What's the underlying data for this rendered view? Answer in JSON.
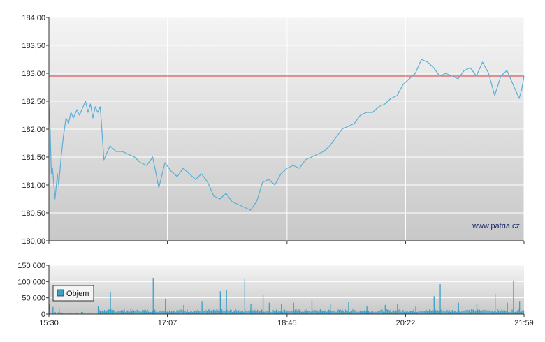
{
  "watermark": "www.patria.cz",
  "colors": {
    "price_line": "#5aaed6",
    "reference_line": "#d23a3a",
    "volume_bar": "#3aa0c8",
    "plot_bg_top": "#f4f4f4",
    "plot_bg_bottom": "#c8c8c8",
    "grid": "#ffffff"
  },
  "chart_data": [
    {
      "type": "line",
      "panel": "price",
      "ylim": [
        180.0,
        184.0
      ],
      "y_ticks": [
        "184,00",
        "183,50",
        "183,00",
        "182,50",
        "182,00",
        "181,50",
        "181,00",
        "180,50",
        "180,00"
      ],
      "x_ticks": [
        "15:30",
        "17:07",
        "18:45",
        "20:22",
        "21:59"
      ],
      "xlim": [
        "15:30",
        "21:59"
      ],
      "reference_line": 182.95,
      "grid": true,
      "series": [
        {
          "x": [
            "15:30",
            "15:31",
            "15:32",
            "15:33",
            "15:35",
            "15:37",
            "15:38",
            "15:40",
            "15:42",
            "15:44",
            "15:46",
            "15:48",
            "15:50",
            "15:53",
            "15:55",
            "15:58",
            "16:00",
            "16:02",
            "16:04",
            "16:06",
            "16:08",
            "16:10",
            "16:12",
            "16:13",
            "16:15",
            "16:20",
            "16:25",
            "16:30",
            "16:35",
            "16:40",
            "16:45",
            "16:50",
            "16:55",
            "17:00",
            "17:05",
            "17:10",
            "17:15",
            "17:20",
            "17:25",
            "17:30",
            "17:35",
            "17:40",
            "17:45",
            "17:50",
            "17:55",
            "18:00",
            "18:05",
            "18:10",
            "18:15",
            "18:20",
            "18:25",
            "18:30",
            "18:35",
            "18:40",
            "18:45",
            "18:50",
            "18:55",
            "19:00",
            "19:05",
            "19:10",
            "19:15",
            "19:20",
            "19:25",
            "19:30",
            "19:35",
            "19:40",
            "19:45",
            "19:50",
            "19:55",
            "20:00",
            "20:05",
            "20:10",
            "20:15",
            "20:20",
            "20:25",
            "20:30",
            "20:35",
            "20:40",
            "20:45",
            "20:50",
            "20:55",
            "21:00",
            "21:05",
            "21:10",
            "21:15",
            "21:20",
            "21:25",
            "21:30",
            "21:35",
            "21:40",
            "21:45",
            "21:50",
            "21:55",
            "21:57",
            "21:59"
          ],
          "y": [
            182.45,
            182.0,
            181.2,
            181.3,
            180.75,
            181.2,
            181.0,
            181.5,
            181.9,
            182.2,
            182.1,
            182.3,
            182.2,
            182.35,
            182.25,
            182.4,
            182.5,
            182.3,
            182.45,
            182.2,
            182.4,
            182.3,
            182.4,
            182.1,
            181.45,
            181.7,
            181.6,
            181.6,
            181.55,
            181.5,
            181.4,
            181.35,
            181.5,
            180.95,
            181.4,
            181.25,
            181.15,
            181.3,
            181.2,
            181.1,
            181.2,
            181.05,
            180.8,
            180.75,
            180.85,
            180.7,
            180.65,
            180.6,
            180.55,
            180.7,
            181.05,
            181.1,
            181.0,
            181.2,
            181.3,
            181.35,
            181.3,
            181.45,
            181.5,
            181.55,
            181.6,
            181.7,
            181.85,
            182.0,
            182.05,
            182.1,
            182.25,
            182.3,
            182.3,
            182.4,
            182.45,
            182.55,
            182.6,
            182.8,
            182.9,
            183.0,
            183.25,
            183.2,
            183.1,
            182.95,
            183.0,
            182.95,
            182.9,
            183.05,
            183.1,
            182.95,
            183.2,
            183.0,
            182.6,
            182.95,
            183.05,
            182.8,
            182.55,
            182.7,
            182.95
          ]
        }
      ]
    },
    {
      "type": "bar",
      "panel": "volume",
      "ylim": [
        0,
        150000
      ],
      "y_ticks": [
        "150 000",
        "100 000",
        "50 000",
        "0"
      ],
      "x_ticks": [
        "15:30",
        "17:07",
        "18:45",
        "20:22",
        "21:59"
      ],
      "legend": [
        "Objem"
      ],
      "legend_position": "left",
      "grid": true,
      "spikes": [
        {
          "x": "15:30",
          "value": 30000
        },
        {
          "x": "15:33",
          "value": 22000
        },
        {
          "x": "15:38",
          "value": 18000
        },
        {
          "x": "16:10",
          "value": 25000
        },
        {
          "x": "16:20",
          "value": 68000
        },
        {
          "x": "16:55",
          "value": 110000
        },
        {
          "x": "17:05",
          "value": 45000
        },
        {
          "x": "17:20",
          "value": 28000
        },
        {
          "x": "17:35",
          "value": 40000
        },
        {
          "x": "17:50",
          "value": 70000
        },
        {
          "x": "17:55",
          "value": 75000
        },
        {
          "x": "18:10",
          "value": 108000
        },
        {
          "x": "18:15",
          "value": 30000
        },
        {
          "x": "18:25",
          "value": 60000
        },
        {
          "x": "18:30",
          "value": 35000
        },
        {
          "x": "18:40",
          "value": 30000
        },
        {
          "x": "18:50",
          "value": 35000
        },
        {
          "x": "19:05",
          "value": 42000
        },
        {
          "x": "19:20",
          "value": 30000
        },
        {
          "x": "19:35",
          "value": 38000
        },
        {
          "x": "19:50",
          "value": 25000
        },
        {
          "x": "20:05",
          "value": 28000
        },
        {
          "x": "20:15",
          "value": 30000
        },
        {
          "x": "20:30",
          "value": 25000
        },
        {
          "x": "20:45",
          "value": 55000
        },
        {
          "x": "20:50",
          "value": 92000
        },
        {
          "x": "21:05",
          "value": 35000
        },
        {
          "x": "21:20",
          "value": 30000
        },
        {
          "x": "21:35",
          "value": 62000
        },
        {
          "x": "21:45",
          "value": 35000
        },
        {
          "x": "21:50",
          "value": 103000
        },
        {
          "x": "21:55",
          "value": 40000
        }
      ]
    }
  ]
}
